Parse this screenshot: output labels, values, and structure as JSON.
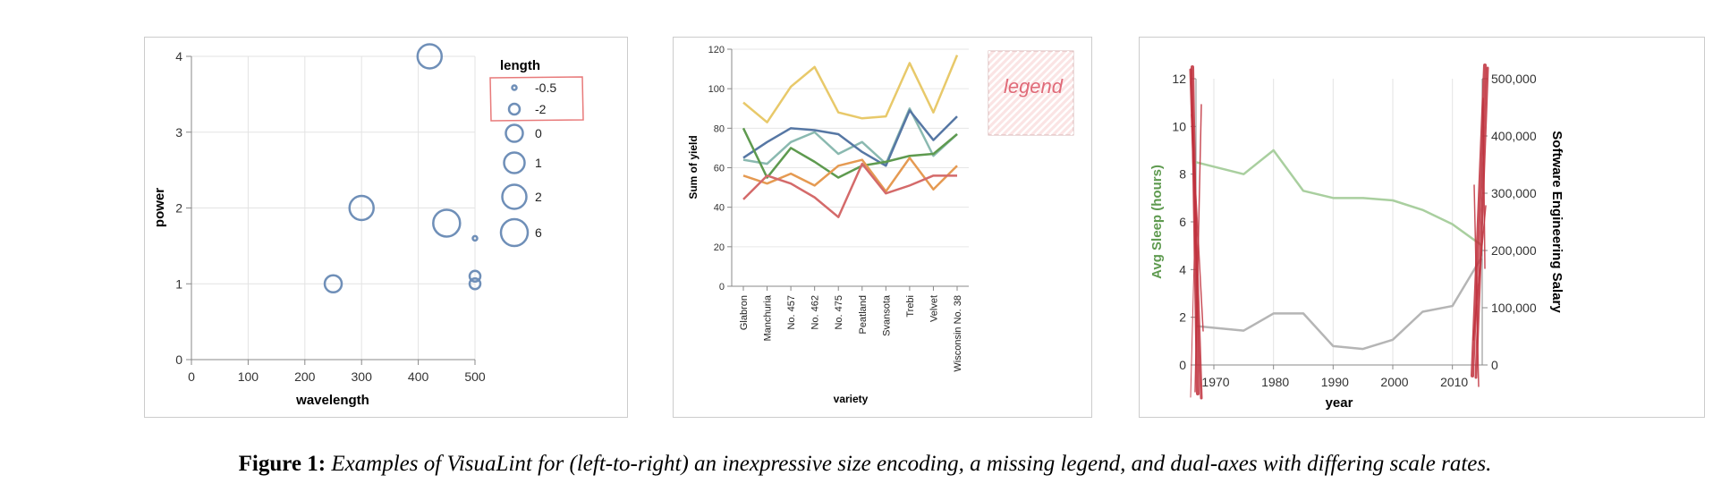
{
  "caption": {
    "label": "Figure 1:",
    "text": "Examples of VisuaLint for (left-to-right) an inexpressive size encoding, a missing legend, and dual-axes with differing scale rates."
  },
  "chart_data": [
    {
      "type": "scatter",
      "xlabel": "wavelength",
      "ylabel": "power",
      "xlim": [
        0,
        500
      ],
      "ylim": [
        0,
        4
      ],
      "xticks": [
        "0",
        "100",
        "200",
        "300",
        "400",
        "500"
      ],
      "yticks": [
        "0",
        "1",
        "2",
        "3",
        "4"
      ],
      "grid": true,
      "mark_color": "#6f8fb8",
      "legend": {
        "title": "length",
        "placement": "right",
        "entries": [
          "-0.5",
          "-2",
          "0",
          "1",
          "2",
          "6"
        ],
        "highlight_color": "#e87a7a",
        "highlighted_entries": [
          "-0.5",
          "-2"
        ]
      },
      "points": [
        {
          "x": 420,
          "y": 4,
          "size": 2
        },
        {
          "x": 300,
          "y": 2,
          "size": 2
        },
        {
          "x": 450,
          "y": 1.8,
          "size": 6
        },
        {
          "x": 250,
          "y": 1,
          "size": 0
        },
        {
          "x": 500,
          "y": 1.6,
          "size": -0.5
        },
        {
          "x": 500,
          "y": 1.1,
          "size": -2
        },
        {
          "x": 500,
          "y": 1,
          "size": -2
        }
      ]
    },
    {
      "type": "line",
      "xlabel": "variety",
      "ylabel": "Sum of yield",
      "ylim": [
        0,
        120
      ],
      "yticks": [
        "0",
        "20",
        "40",
        "60",
        "80",
        "100",
        "120"
      ],
      "grid": true,
      "categories": [
        "Glabron",
        "Manchuria",
        "No. 457",
        "No. 462",
        "No. 475",
        "Peatland",
        "Svansota",
        "Trebi",
        "Velvet",
        "Wisconsin No. 38"
      ],
      "legend_placeholder": {
        "text": "legend",
        "color": "#e06a78"
      },
      "series": [
        {
          "color": "#e8c96a",
          "values": [
            93,
            83,
            101,
            111,
            88,
            85,
            86,
            113,
            88,
            117
          ]
        },
        {
          "color": "#8ab9b0",
          "values": [
            64,
            62,
            73,
            78,
            67,
            73,
            62,
            90,
            66,
            77
          ]
        },
        {
          "color": "#5677a4",
          "values": [
            65,
            73,
            80,
            79,
            77,
            68,
            61,
            89,
            74,
            86
          ]
        },
        {
          "color": "#5e9a4f",
          "values": [
            80,
            55,
            70,
            63,
            55,
            61,
            63,
            66,
            67,
            77
          ]
        },
        {
          "color": "#e59a52",
          "values": [
            56,
            52,
            57,
            51,
            61,
            64,
            48,
            65,
            49,
            61
          ]
        },
        {
          "color": "#d46a6a",
          "values": [
            44,
            56,
            52,
            45,
            35,
            62,
            47,
            51,
            56,
            56
          ]
        }
      ]
    },
    {
      "type": "line",
      "xlabel": "year",
      "ylabel_left": "Avg Sleep (hours)",
      "ylabel_right": "Software Engineering Salary",
      "xlim": [
        1967,
        2015
      ],
      "ylim_left": [
        0,
        12
      ],
      "ylim_right": [
        0,
        500000
      ],
      "xticks": [
        "1970",
        "1980",
        "1990",
        "2000",
        "2010"
      ],
      "yticks_left": [
        "0",
        "2",
        "4",
        "6",
        "8",
        "10",
        "12"
      ],
      "yticks_right": [
        "0",
        "100,000",
        "200,000",
        "300,000",
        "400,000",
        "500,000"
      ],
      "grid": true,
      "left_label_color": "#5e9a4f",
      "annotation_color": "#c0303c",
      "x": [
        1967,
        1975,
        1980,
        1985,
        1990,
        1995,
        2000,
        2005,
        2010,
        2015
      ],
      "series": [
        {
          "axis": "left",
          "color": "#a9cf9f",
          "values": [
            8.5,
            8.0,
            9.0,
            7.3,
            7.0,
            7.0,
            6.9,
            6.5,
            5.9,
            5.0
          ]
        },
        {
          "axis": "right",
          "color": "#b5b5b5",
          "values": [
            68000,
            60000,
            90000,
            90000,
            33000,
            28000,
            44000,
            93000,
            103000,
            190000
          ]
        }
      ]
    }
  ]
}
